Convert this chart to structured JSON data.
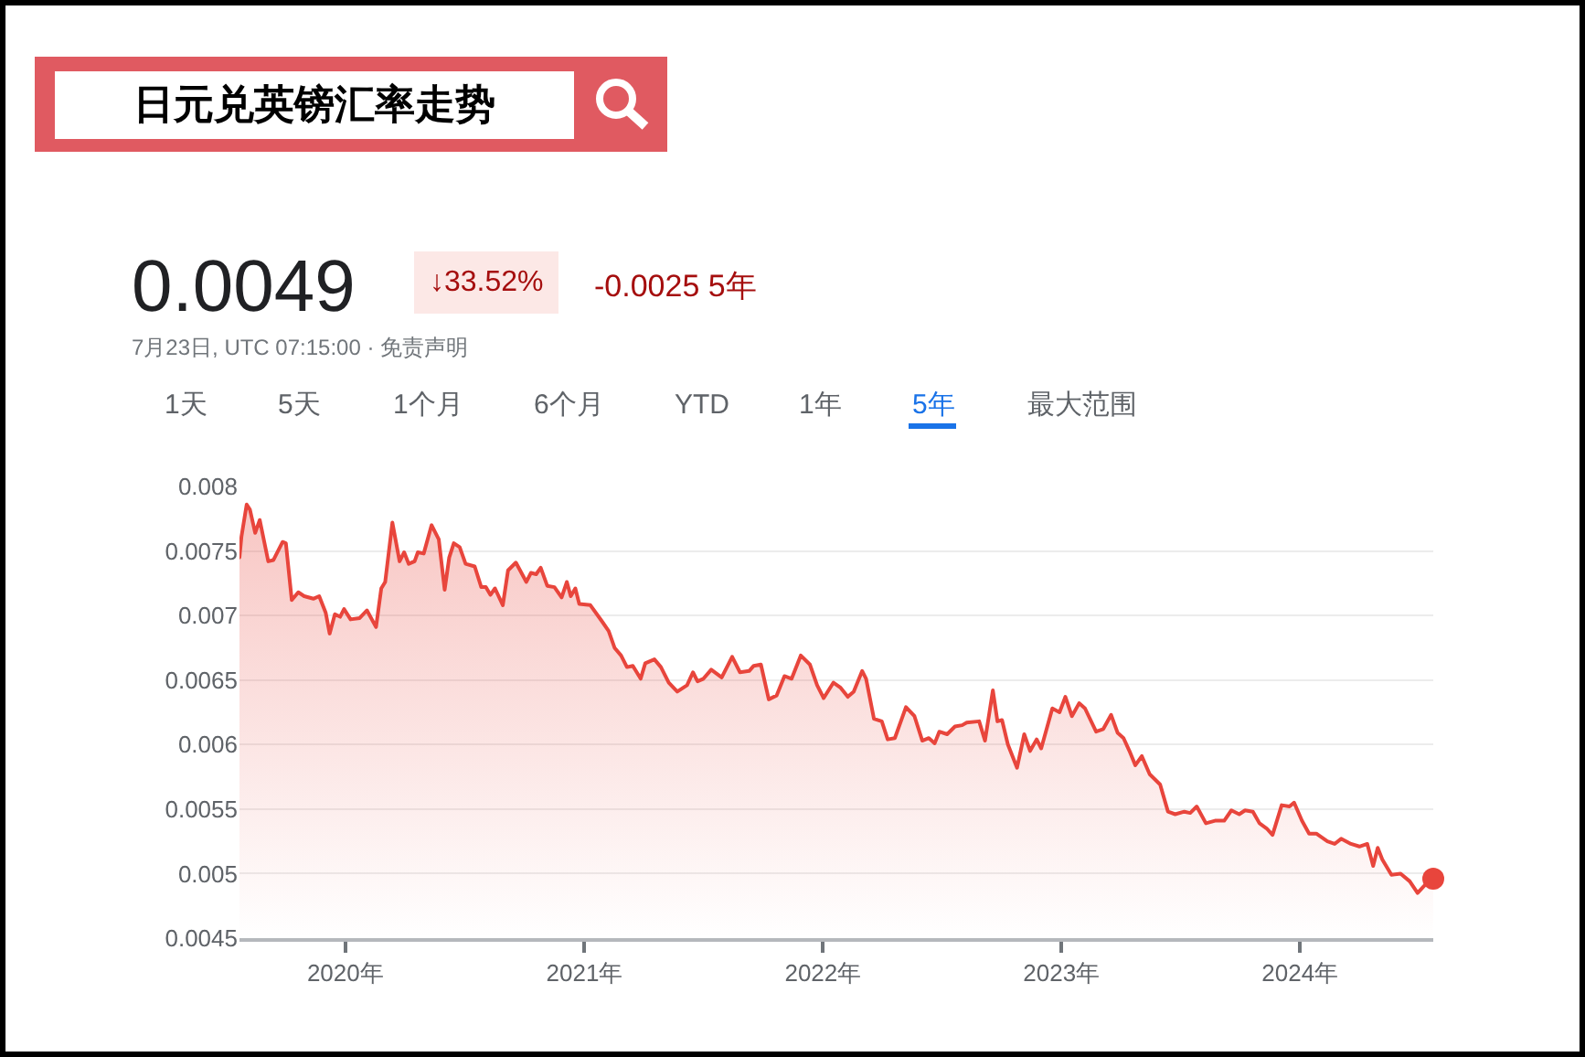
{
  "chart_data": {
    "type": "area",
    "title": "日元兑英镑汇率走势",
    "annotations": [
      "0.0049",
      "↓33.52%",
      "-0.0025 5年",
      "7月23日, UTC 07:15:00 · 免责声明",
      "1天",
      "5天",
      "1个月",
      "6个月",
      "YTD",
      "1年",
      "5年",
      "最大范围"
    ],
    "x": [
      "2019-07-23",
      "2019-07-26",
      "2019-08-03",
      "2019-08-08",
      "2019-08-16",
      "2019-08-23",
      "2019-09-05",
      "2019-09-13",
      "2019-09-27",
      "2019-10-02",
      "2019-10-11",
      "2019-10-21",
      "2019-10-30",
      "2019-11-13",
      "2019-11-22",
      "2019-12-02",
      "2019-12-08",
      "2019-12-16",
      "2019-12-24",
      "2019-12-30",
      "2020-01-09",
      "2020-01-23",
      "2020-02-03",
      "2020-02-17",
      "2020-02-25",
      "2020-03-02",
      "2020-03-13",
      "2020-03-24",
      "2020-03-31",
      "2020-04-07",
      "2020-04-16",
      "2020-04-21",
      "2020-04-30",
      "2020-05-12",
      "2020-05-23",
      "2020-06-01",
      "2020-06-08",
      "2020-06-15",
      "2020-06-24",
      "2020-07-03",
      "2020-07-17",
      "2020-07-27",
      "2020-08-03",
      "2020-08-10",
      "2020-08-17",
      "2020-08-29",
      "2020-09-06",
      "2020-09-18",
      "2020-10-04",
      "2020-10-11",
      "2020-10-19",
      "2020-10-26",
      "2020-11-05",
      "2020-11-16",
      "2020-11-27",
      "2020-12-05",
      "2020-12-11",
      "2020-12-18",
      "2020-12-24",
      "2021-01-10",
      "2021-01-27",
      "2021-02-07",
      "2021-02-16",
      "2021-02-26",
      "2021-03-07",
      "2021-03-16",
      "2021-03-28",
      "2021-04-04",
      "2021-04-18",
      "2021-04-28",
      "2021-05-10",
      "2021-05-23",
      "2021-06-07",
      "2021-06-16",
      "2021-06-23",
      "2021-07-02",
      "2021-07-14",
      "2021-07-30",
      "2021-08-15",
      "2021-08-27",
      "2021-09-10",
      "2021-09-17",
      "2021-09-28",
      "2021-10-10",
      "2021-10-22",
      "2021-11-03",
      "2021-11-14",
      "2021-11-28",
      "2021-12-12",
      "2021-12-23",
      "2022-01-02",
      "2022-01-17",
      "2022-01-28",
      "2022-02-08",
      "2022-02-17",
      "2022-03-02",
      "2022-03-08",
      "2022-03-20",
      "2022-04-01",
      "2022-04-10",
      "2022-04-21",
      "2022-05-08",
      "2022-05-21",
      "2022-06-02",
      "2022-06-12",
      "2022-06-21",
      "2022-06-28",
      "2022-07-10",
      "2022-07-22",
      "2022-08-02",
      "2022-08-09",
      "2022-08-28",
      "2022-09-06",
      "2022-09-18",
      "2022-09-25",
      "2022-10-02",
      "2022-10-11",
      "2022-10-25",
      "2022-11-05",
      "2022-11-14",
      "2022-11-24",
      "2022-12-01",
      "2022-12-18",
      "2022-12-29",
      "2023-01-07",
      "2023-01-17",
      "2023-01-28",
      "2023-02-06",
      "2023-02-23",
      "2023-03-06",
      "2023-03-18",
      "2023-03-28",
      "2023-04-06",
      "2023-04-15",
      "2023-04-24",
      "2023-05-04",
      "2023-05-16",
      "2023-06-01",
      "2023-06-13",
      "2023-06-24",
      "2023-07-08",
      "2023-07-17",
      "2023-07-27",
      "2023-08-10",
      "2023-08-24",
      "2023-09-07",
      "2023-09-18",
      "2023-09-30",
      "2023-10-09",
      "2023-10-21",
      "2023-10-31",
      "2023-11-11",
      "2023-11-20",
      "2023-12-04",
      "2023-12-16",
      "2023-12-23",
      "2024-01-04",
      "2024-01-15",
      "2024-01-26",
      "2024-02-12",
      "2024-02-23",
      "2024-03-04",
      "2024-03-19",
      "2024-04-01",
      "2024-04-13",
      "2024-04-22",
      "2024-04-29",
      "2024-05-06",
      "2024-05-20",
      "2024-06-03",
      "2024-06-17",
      "2024-06-29",
      "2024-07-10",
      "2024-07-23"
    ],
    "series": [
      {
        "color": "#e8453c",
        "values": [
          0.00745,
          0.00761,
          0.00786,
          0.00782,
          0.00764,
          0.00774,
          0.00742,
          0.00743,
          0.00757,
          0.00756,
          0.00712,
          0.00718,
          0.00715,
          0.00713,
          0.00715,
          0.00702,
          0.00686,
          0.00701,
          0.00699,
          0.00705,
          0.00697,
          0.00698,
          0.00704,
          0.00691,
          0.00721,
          0.00726,
          0.00772,
          0.00742,
          0.00749,
          0.0074,
          0.00742,
          0.00749,
          0.00748,
          0.0077,
          0.00759,
          0.0072,
          0.00745,
          0.00756,
          0.00753,
          0.0074,
          0.00738,
          0.00722,
          0.00722,
          0.00716,
          0.00721,
          0.00708,
          0.00735,
          0.00741,
          0.00726,
          0.00733,
          0.00732,
          0.00737,
          0.00723,
          0.00722,
          0.00714,
          0.00726,
          0.00715,
          0.00721,
          0.00709,
          0.00708,
          0.00696,
          0.00688,
          0.00675,
          0.00669,
          0.0066,
          0.00661,
          0.00651,
          0.00663,
          0.00666,
          0.0066,
          0.00648,
          0.00641,
          0.00646,
          0.00656,
          0.00649,
          0.00651,
          0.00658,
          0.00652,
          0.00668,
          0.00656,
          0.00657,
          0.00661,
          0.00662,
          0.00635,
          0.00638,
          0.00653,
          0.00651,
          0.00669,
          0.00662,
          0.00646,
          0.00636,
          0.00648,
          0.00644,
          0.00637,
          0.00641,
          0.00657,
          0.00651,
          0.0062,
          0.00618,
          0.00604,
          0.00605,
          0.00629,
          0.00622,
          0.00603,
          0.00605,
          0.00601,
          0.0061,
          0.00608,
          0.00614,
          0.00615,
          0.00617,
          0.00618,
          0.00603,
          0.00642,
          0.00618,
          0.00619,
          0.006,
          0.00582,
          0.00608,
          0.00595,
          0.00604,
          0.00597,
          0.00628,
          0.00625,
          0.00637,
          0.00622,
          0.00632,
          0.00628,
          0.0061,
          0.00612,
          0.00623,
          0.00609,
          0.00605,
          0.00595,
          0.00584,
          0.00591,
          0.00577,
          0.00569,
          0.00548,
          0.00546,
          0.00548,
          0.00547,
          0.00552,
          0.00539,
          0.00541,
          0.00541,
          0.00549,
          0.00546,
          0.00549,
          0.00548,
          0.00539,
          0.00535,
          0.0053,
          0.00553,
          0.00552,
          0.00555,
          0.00541,
          0.00531,
          0.00531,
          0.00525,
          0.00523,
          0.00527,
          0.00523,
          0.00521,
          0.00523,
          0.00506,
          0.0052,
          0.00511,
          0.00499,
          0.005,
          0.00494,
          0.00485,
          0.00491,
          0.00496
        ]
      },
      {
        "type": "scatter",
        "marker": "circle",
        "color": "#e8453c",
        "x": [
          "2024-07-23"
        ],
        "values": [
          0.00496
        ]
      }
    ],
    "xlim": [
      "2019-07-23",
      "2024-07-23"
    ],
    "xticks": [
      {
        "value": "2020",
        "label": "2020年"
      },
      {
        "value": "2021",
        "label": "2021年"
      },
      {
        "value": "2022",
        "label": "2022年"
      },
      {
        "value": "2023",
        "label": "2023年"
      },
      {
        "value": "2024",
        "label": "2024年"
      }
    ],
    "ylim": [
      0.0045,
      0.008
    ],
    "yticks": [
      0.0045,
      0.005,
      0.0055,
      0.006,
      0.0065,
      0.007,
      0.0075,
      0.008
    ],
    "grid": "y"
  }
}
